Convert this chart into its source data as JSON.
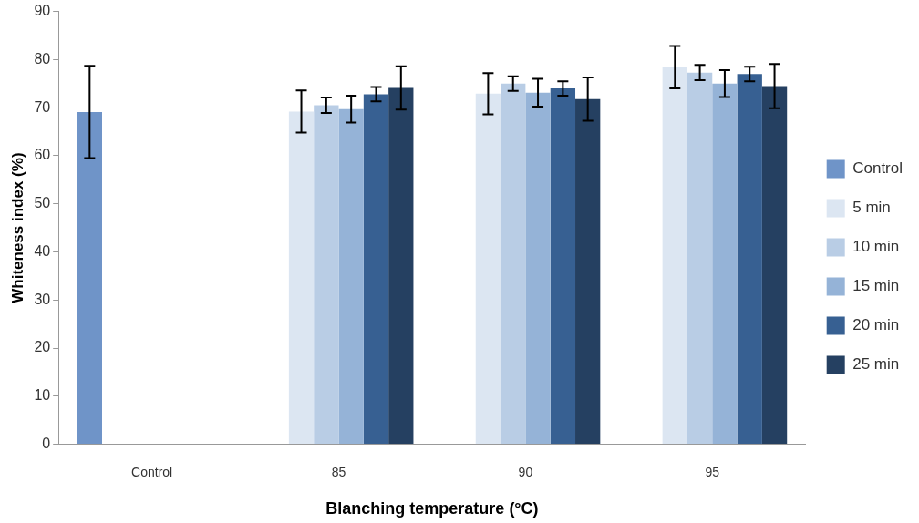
{
  "chart_data": {
    "type": "bar",
    "xlabel": "Blanching temperature (°C)",
    "ylabel": "Whiteness index (%)",
    "categories": [
      "Control",
      "85",
      "90",
      "95"
    ],
    "series": [
      {
        "name": "Control",
        "color": "#6f94c8",
        "values": [
          69.1,
          null,
          null,
          null
        ],
        "errors": [
          9.6,
          null,
          null,
          null
        ]
      },
      {
        "name": "5 min",
        "color": "#dce6f2",
        "values": [
          null,
          69.2,
          72.9,
          78.4
        ],
        "errors": [
          null,
          4.4,
          4.3,
          4.4
        ]
      },
      {
        "name": "10 min",
        "color": "#b9cde5",
        "values": [
          null,
          70.5,
          75.0,
          77.3
        ],
        "errors": [
          null,
          1.6,
          1.5,
          1.6
        ]
      },
      {
        "name": "15 min",
        "color": "#95b3d7",
        "values": [
          null,
          69.7,
          73.1,
          75.0
        ],
        "errors": [
          null,
          2.8,
          2.9,
          2.8
        ]
      },
      {
        "name": "20 min",
        "color": "#376092",
        "values": [
          null,
          72.8,
          74.0,
          77.0
        ],
        "errors": [
          null,
          1.5,
          1.5,
          1.5
        ]
      },
      {
        "name": "25 min",
        "color": "#254061",
        "values": [
          null,
          74.1,
          71.8,
          74.5
        ],
        "errors": [
          null,
          4.5,
          4.5,
          4.6
        ]
      }
    ],
    "ylim": [
      0,
      90
    ],
    "yticks": [
      0,
      10,
      20,
      30,
      40,
      50,
      60,
      70,
      80,
      90
    ],
    "grid": false,
    "legend": "right"
  }
}
